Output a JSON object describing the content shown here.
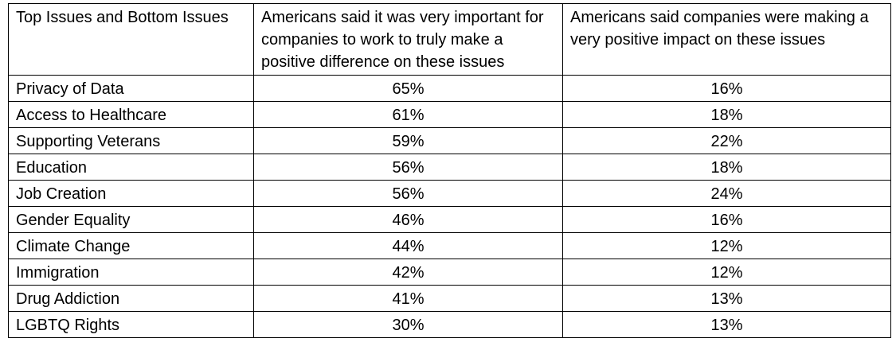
{
  "table": {
    "headers": [
      "Top Issues and Bottom Issues",
      "Americans said it was very important for companies to work to truly make a positive difference on these issues",
      "Americans said companies were making a very positive impact on these issues"
    ],
    "rows": [
      {
        "issue": "Privacy of Data",
        "important": "65%",
        "impact": "16%"
      },
      {
        "issue": "Access to Healthcare",
        "important": "61%",
        "impact": "18%"
      },
      {
        "issue": "Supporting Veterans",
        "important": "59%",
        "impact": "22%"
      },
      {
        "issue": "Education",
        "important": "56%",
        "impact": "18%"
      },
      {
        "issue": "Job Creation",
        "important": "56%",
        "impact": "24%"
      },
      {
        "issue": "Gender Equality",
        "important": "46%",
        "impact": "16%"
      },
      {
        "issue": "Climate Change",
        "important": "44%",
        "impact": "12%"
      },
      {
        "issue": "Immigration",
        "important": "42%",
        "impact": "12%"
      },
      {
        "issue": "Drug Addiction",
        "important": "41%",
        "impact": "13%"
      },
      {
        "issue": "LGBTQ Rights",
        "important": "30%",
        "impact": "13%"
      }
    ]
  }
}
